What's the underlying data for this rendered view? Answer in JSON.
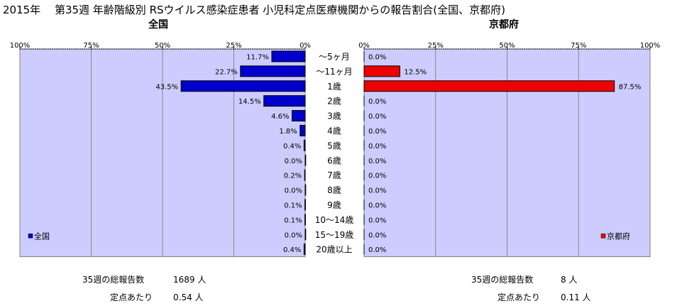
{
  "title": "2015年　 第35週 年齢階級別 RSウイルス感染症患者 小児科定点医療機関からの報告割合(全国、京都府)",
  "chart_data": [
    {
      "type": "bar",
      "orientation": "horizontal",
      "direction": "right-to-left",
      "title": "全国",
      "categories": [
        "～5ヶ月",
        "～11ヶ月",
        "1歳",
        "2歳",
        "3歳",
        "4歳",
        "5歳",
        "6歳",
        "7歳",
        "8歳",
        "9歳",
        "10～14歳",
        "15～19歳",
        "20歳以上"
      ],
      "series": [
        {
          "name": "全国",
          "color": "#0000cc",
          "values": [
            11.7,
            22.7,
            43.5,
            14.5,
            4.6,
            1.8,
            0.4,
            0.0,
            0.2,
            0.0,
            0.1,
            0.1,
            0.0,
            0.4
          ],
          "labels": [
            "11.7%",
            "22.7%",
            "43.5%",
            "14.5%",
            "4.6%",
            "1.8%",
            "0.4%",
            "0.0%",
            "0.2%",
            "0.0%",
            "0.1%",
            "0.1%",
            "0.0%",
            "0.4%"
          ]
        }
      ],
      "xlim": [
        0,
        100
      ],
      "ticks": [
        "100%",
        "75%",
        "50%",
        "25%",
        "0%"
      ],
      "grid": true,
      "legend": "bottom-left"
    },
    {
      "type": "bar",
      "orientation": "horizontal",
      "direction": "left-to-right",
      "title": "京都府",
      "categories": [
        "～5ヶ月",
        "～11ヶ月",
        "1歳",
        "2歳",
        "3歳",
        "4歳",
        "5歳",
        "6歳",
        "7歳",
        "8歳",
        "9歳",
        "10～14歳",
        "15～19歳",
        "20歳以上"
      ],
      "series": [
        {
          "name": "京都府",
          "color": "#ee0000",
          "values": [
            0.0,
            12.5,
            87.5,
            0.0,
            0.0,
            0.0,
            0.0,
            0.0,
            0.0,
            0.0,
            0.0,
            0.0,
            0.0,
            0.0
          ],
          "labels": [
            "0.0%",
            "12.5%",
            "87.5%",
            "0.0%",
            "0.0%",
            "0.0%",
            "0.0%",
            "0.0%",
            "0.0%",
            "0.0%",
            "0.0%",
            "0.0%",
            "0.0%",
            "0.0%"
          ]
        }
      ],
      "xlim": [
        0,
        100
      ],
      "ticks": [
        "0%",
        "25%",
        "50%",
        "75%",
        "100%"
      ],
      "grid": true,
      "legend": "bottom-right"
    }
  ],
  "colors": {
    "plot_bg": "#ccccff",
    "national_bar": "#0000cc",
    "kyoto_bar": "#ee0000",
    "grid": "#888888"
  },
  "footer": {
    "national": {
      "total_label": "35週の総報告数",
      "total_value": "1689 人",
      "per_label": "定点あたり",
      "per_value": "0.54 人"
    },
    "kyoto": {
      "total_label": "35週の総報告数",
      "total_value": "8 人",
      "per_label": "定点あたり",
      "per_value": "0.11 人"
    }
  }
}
